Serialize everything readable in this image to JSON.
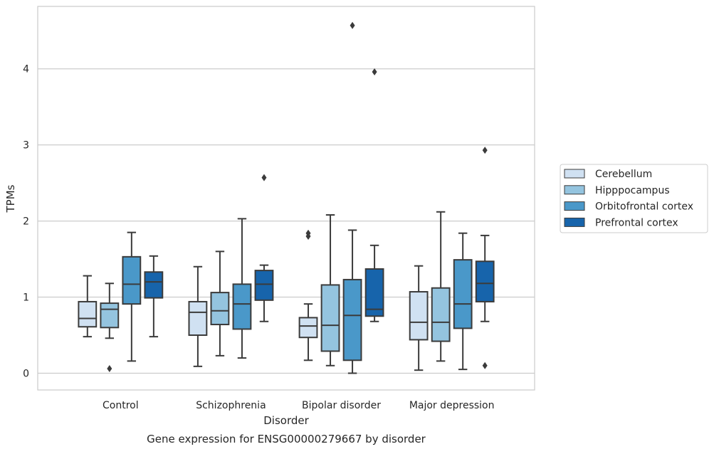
{
  "chart_data": {
    "type": "boxplot",
    "xlabel": "Disorder",
    "ylabel": "TPMs",
    "ylim": [
      -0.22,
      4.82
    ],
    "yticks": [
      0,
      1,
      2,
      3,
      4
    ],
    "grid": "horizontal",
    "legend_position": "right",
    "categories": [
      "Control",
      "Schizophrenia",
      "Bipolar disorder",
      "Major depression"
    ],
    "series": [
      {
        "name": "Cerebellum",
        "color": "#d0e1f2",
        "boxes": [
          {
            "whislo": 0.48,
            "q1": 0.61,
            "med": 0.72,
            "q3": 0.94,
            "whishi": 1.28,
            "fliers": []
          },
          {
            "whislo": 0.09,
            "q1": 0.5,
            "med": 0.8,
            "q3": 0.94,
            "whishi": 1.4,
            "fliers": []
          },
          {
            "whislo": 0.17,
            "q1": 0.47,
            "med": 0.62,
            "q3": 0.73,
            "whishi": 0.91,
            "fliers": [
              1.8,
              1.84
            ]
          },
          {
            "whislo": 0.04,
            "q1": 0.44,
            "med": 0.67,
            "q3": 1.07,
            "whishi": 1.41,
            "fliers": []
          }
        ]
      },
      {
        "name": "Hipppocampus",
        "color": "#94c4df",
        "boxes": [
          {
            "whislo": 0.46,
            "q1": 0.6,
            "med": 0.84,
            "q3": 0.92,
            "whishi": 1.18,
            "fliers": [
              0.06
            ]
          },
          {
            "whislo": 0.23,
            "q1": 0.64,
            "med": 0.82,
            "q3": 1.06,
            "whishi": 1.6,
            "fliers": []
          },
          {
            "whislo": 0.1,
            "q1": 0.29,
            "med": 0.63,
            "q3": 1.16,
            "whishi": 2.08,
            "fliers": []
          },
          {
            "whislo": 0.16,
            "q1": 0.42,
            "med": 0.67,
            "q3": 1.12,
            "whishi": 2.12,
            "fliers": []
          }
        ]
      },
      {
        "name": "Orbitofrontal cortex",
        "color": "#4a98c9",
        "boxes": [
          {
            "whislo": 0.16,
            "q1": 0.91,
            "med": 1.17,
            "q3": 1.53,
            "whishi": 1.85,
            "fliers": []
          },
          {
            "whislo": 0.2,
            "q1": 0.58,
            "med": 0.91,
            "q3": 1.17,
            "whishi": 2.03,
            "fliers": []
          },
          {
            "whislo": 0.0,
            "q1": 0.17,
            "med": 0.76,
            "q3": 1.23,
            "whishi": 1.88,
            "fliers": [
              4.57
            ]
          },
          {
            "whislo": 0.05,
            "q1": 0.59,
            "med": 0.91,
            "q3": 1.49,
            "whishi": 1.84,
            "fliers": []
          }
        ]
      },
      {
        "name": "Prefrontal cortex",
        "color": "#1764ab",
        "boxes": [
          {
            "whislo": 0.48,
            "q1": 0.99,
            "med": 1.2,
            "q3": 1.33,
            "whishi": 1.54,
            "fliers": []
          },
          {
            "whislo": 0.68,
            "q1": 0.96,
            "med": 1.17,
            "q3": 1.35,
            "whishi": 1.42,
            "fliers": [
              2.57
            ]
          },
          {
            "whislo": 0.68,
            "q1": 0.75,
            "med": 0.84,
            "q3": 1.37,
            "whishi": 1.68,
            "fliers": [
              3.96
            ]
          },
          {
            "whislo": 0.68,
            "q1": 0.94,
            "med": 1.18,
            "q3": 1.47,
            "whishi": 1.81,
            "fliers": [
              0.1,
              2.93
            ]
          }
        ]
      }
    ]
  },
  "caption": "Gene expression for ENSG00000279667 by disorder"
}
